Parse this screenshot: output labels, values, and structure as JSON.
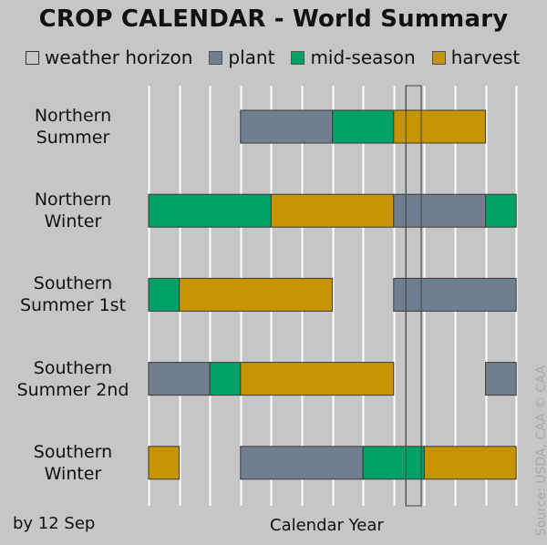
{
  "chart_data": {
    "type": "bar",
    "title": "CROP CALENDAR - World Summary",
    "xlabel": "Calendar Year",
    "subtitle_left": "by 12 Sep",
    "source": "Source: USDA, CAA   © CAA",
    "months_shown": 12,
    "month_grid": true,
    "weather_horizon_month": [
      8.4,
      8.9
    ],
    "legend": [
      {
        "key": "weather",
        "label": "weather horizon",
        "color": "#c6c6c6"
      },
      {
        "key": "plant",
        "label": "plant",
        "color": "#707f8f"
      },
      {
        "key": "mid",
        "label": "mid-season",
        "color": "#00a066"
      },
      {
        "key": "harvest",
        "label": "harvest",
        "color": "#c69400"
      }
    ],
    "rows": [
      {
        "label_line1": "Northern",
        "label_line2": "Summer",
        "segments": [
          {
            "phase": "plant",
            "start": 3,
            "end": 6
          },
          {
            "phase": "mid",
            "start": 6,
            "end": 8
          },
          {
            "phase": "harvest",
            "start": 8,
            "end": 11
          }
        ]
      },
      {
        "label_line1": "Northern",
        "label_line2": "Winter",
        "segments": [
          {
            "phase": "mid",
            "start": 0,
            "end": 4
          },
          {
            "phase": "harvest",
            "start": 4,
            "end": 8
          },
          {
            "phase": "plant",
            "start": 8,
            "end": 11
          },
          {
            "phase": "mid",
            "start": 11,
            "end": 12
          }
        ]
      },
      {
        "label_line1": "Southern",
        "label_line2": "Summer 1st",
        "segments": [
          {
            "phase": "mid",
            "start": 0,
            "end": 1
          },
          {
            "phase": "harvest",
            "start": 1,
            "end": 6
          },
          {
            "phase": "plant",
            "start": 8,
            "end": 12
          }
        ]
      },
      {
        "label_line1": "Southern",
        "label_line2": "Summer 2nd",
        "segments": [
          {
            "phase": "plant",
            "start": 0,
            "end": 2
          },
          {
            "phase": "mid",
            "start": 2,
            "end": 3
          },
          {
            "phase": "harvest",
            "start": 3,
            "end": 8
          },
          {
            "phase": "plant",
            "start": 11,
            "end": 12
          }
        ]
      },
      {
        "label_line1": "Southern",
        "label_line2": "Winter",
        "segments": [
          {
            "phase": "harvest",
            "start": 0,
            "end": 1
          },
          {
            "phase": "plant",
            "start": 3,
            "end": 7
          },
          {
            "phase": "mid",
            "start": 7,
            "end": 9
          },
          {
            "phase": "harvest",
            "start": 9,
            "end": 12
          }
        ]
      }
    ]
  }
}
